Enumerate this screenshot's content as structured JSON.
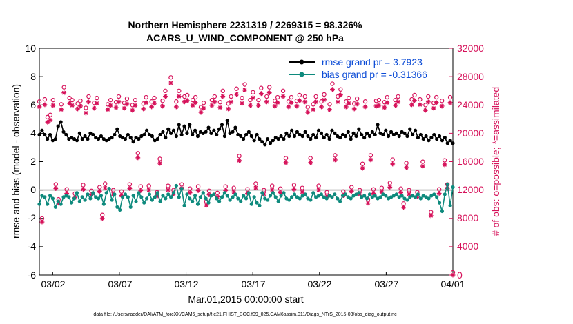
{
  "chart_data": {
    "type": "line",
    "title": [
      "Northern Hemisphere 2231319 / 2269315 = 98.326%",
      "ACARS_U_WIND_COMPONENT @ 250 hPa"
    ],
    "xlabel": "Mar.01,2015 00:00:00 start",
    "ylabel_left": "rmse and bias (model - observation)",
    "ylabel_right": "# of obs: o=possible; *=assimilated",
    "ylim_left": [
      -6,
      10
    ],
    "ylim_right": [
      0,
      32000
    ],
    "yticks_left": [
      "10",
      "8",
      "6",
      "4",
      "2",
      "0",
      "-2",
      "-4",
      "-6"
    ],
    "yticks_right": [
      "32000",
      "28000",
      "24000",
      "20000",
      "16000",
      "12000",
      "8000",
      "4000",
      "0"
    ],
    "xticks": [
      "03/02",
      "03/07",
      "03/12",
      "03/17",
      "03/22",
      "03/27",
      "04/01"
    ],
    "xlim_days": [
      0,
      31
    ],
    "footer": "data file: /Users/raeder/DAI/ATM_forcXX/CAM6_setup/f.e21.FHIST_BGC.f09_025.CAM6assim.011/Diags_NTrS_2015-03/obs_diag_output.nc",
    "colors": {
      "rmse": "#000000",
      "bias": "#0e8a7d",
      "obs": "#d6125a",
      "legend_text": "#0b4bd6",
      "zero_line": "#bdbdbd"
    },
    "series": [
      {
        "name": "rmse grand pr = 3.7923",
        "values": [
          3.9,
          4.2,
          3.9,
          3.6,
          3.9,
          3.5,
          3.6,
          4.5,
          4.8,
          4.1,
          3.9,
          3.6,
          3.7,
          3.6,
          3.5,
          4.0,
          3.6,
          3.8,
          3.6,
          4.0,
          3.9,
          3.7,
          3.6,
          3.8,
          3.6,
          3.5,
          3.6,
          3.7,
          3.9,
          4.3,
          3.8,
          3.7,
          3.6,
          3.9,
          3.7,
          3.4,
          3.7,
          3.6,
          3.8,
          3.9,
          4.2,
          3.9,
          3.8,
          3.5,
          3.6,
          3.9,
          4.1,
          3.7,
          4.3,
          4.0,
          4.2,
          3.8,
          4.6,
          3.9,
          4.5,
          4.0,
          4.6,
          3.9,
          4.2,
          3.8,
          4.1,
          4.0,
          4.1,
          4.4,
          4.0,
          4.2,
          3.9,
          4.3,
          4.6,
          3.8,
          4.9,
          4.0,
          4.1,
          4.4,
          3.9,
          3.8,
          3.6,
          3.9,
          4.1,
          3.8,
          3.5,
          3.9,
          3.6,
          3.4,
          3.2,
          3.6,
          3.3,
          3.5,
          3.7,
          3.6,
          3.8,
          3.6,
          4.0,
          3.8,
          4.2,
          3.8,
          4.1,
          3.9,
          3.8,
          4.1,
          3.8,
          3.6,
          3.9,
          3.7,
          4.2,
          4.0,
          3.7,
          3.9,
          3.6,
          4.2,
          4.0,
          3.8,
          3.7,
          3.9,
          3.8,
          4.1,
          3.6,
          4.0,
          3.8,
          4.3,
          3.9,
          3.7,
          4.0,
          3.8,
          4.1,
          3.9,
          4.6,
          4.0,
          3.9,
          4.2,
          3.8,
          4.1,
          3.9,
          4.0,
          3.8,
          4.1,
          4.0,
          3.8,
          4.3,
          3.9,
          4.2,
          3.7,
          3.9,
          3.6,
          3.8,
          3.5,
          3.7,
          3.9,
          3.6,
          3.8,
          3.5,
          3.7,
          3.3,
          3.5,
          3.3
        ]
      },
      {
        "name": "bias grand pr = -0.31366",
        "values": [
          -1.0,
          -0.4,
          -0.5,
          -1.0,
          -0.4,
          -0.6,
          -1.2,
          -0.8,
          -1.0,
          -0.5,
          -0.4,
          -0.5,
          -0.9,
          -0.6,
          -0.2,
          -0.8,
          -0.5,
          -0.7,
          -0.3,
          -0.6,
          -0.2,
          -0.5,
          -0.6,
          -0.4,
          -1.0,
          -0.2,
          0.1,
          -0.7,
          -0.3,
          -1.2,
          -1.4,
          -0.5,
          -0.3,
          -0.5,
          -1.2,
          -0.4,
          -0.8,
          -0.2,
          -0.5,
          -0.9,
          -0.6,
          -0.3,
          -0.7,
          -0.5,
          -0.2,
          -0.8,
          -0.4,
          -0.6,
          -0.3,
          -0.5,
          -0.2,
          0.3,
          -0.5,
          0.1,
          -1.1,
          -0.3,
          -0.6,
          -0.8,
          -0.4,
          -1.0,
          -0.5,
          -0.2,
          -0.6,
          -0.9,
          -0.4,
          -0.3,
          -0.6,
          -0.8,
          -0.5,
          -0.2,
          -0.4,
          -0.7,
          -0.5,
          -0.3,
          -0.6,
          -0.8,
          -0.4,
          -0.6,
          -0.2,
          -1.0,
          -0.5,
          -0.9,
          -1.1,
          -0.2,
          -0.6,
          -0.7,
          -0.4,
          -0.2,
          -0.5,
          -0.8,
          -0.4,
          -0.2,
          -0.6,
          -0.7,
          -0.5,
          -0.3,
          -0.5,
          -0.6,
          -0.4,
          -0.3,
          -0.6,
          -0.7,
          -0.2,
          -0.5,
          -0.4,
          -0.3,
          -0.5,
          -0.6,
          -0.4,
          -0.5,
          -0.3,
          -0.6,
          -0.8,
          -0.4,
          -0.3,
          -0.5,
          -0.6,
          -0.4,
          -0.3,
          -0.2,
          -0.5,
          -0.4,
          -0.6,
          -0.3,
          -0.5,
          -0.4,
          -0.6,
          -0.5,
          -0.3,
          -0.4,
          -0.6,
          -0.5,
          -0.4,
          -0.3,
          -0.5,
          -0.4,
          -0.6,
          -0.7,
          -0.5,
          -0.4,
          -0.5,
          -0.3,
          -0.6,
          -0.4,
          -0.5,
          -0.6,
          -0.4,
          -0.3,
          -0.5,
          -0.9,
          -1.5,
          -0.3,
          0.4,
          -1.1,
          0.2
        ]
      },
      {
        "name": "obs possible (o)",
        "values": [
          24100,
          7600,
          24400,
          21900,
          22200,
          24300,
          12400,
          10300,
          23700,
          26100,
          11700,
          24600,
          24300,
          11100,
          23800,
          24200,
          12300,
          23200,
          24800,
          11500,
          23900,
          24600,
          12000,
          8100,
          12500,
          23700,
          24300,
          11600,
          24000,
          24800,
          11400,
          23900,
          24500,
          12400,
          23600,
          24300,
          16800,
          12100,
          23800,
          24700,
          12200,
          24100,
          24600,
          11300,
          16000,
          24200,
          25600,
          12200,
          27500,
          11600,
          24100,
          25600,
          12400,
          24800,
          25000,
          11800,
          24300,
          24700,
          12100,
          23300,
          23900,
          10000,
          11500,
          24300,
          24800,
          11200,
          24000,
          25600,
          12100,
          23800,
          24800,
          11900,
          25900,
          16400,
          24600,
          26500,
          11700,
          24300,
          25400,
          12500,
          24300,
          26000,
          11600,
          24800,
          26100,
          12200,
          24200,
          24700,
          11800,
          25600,
          16100,
          24100,
          24700,
          12300,
          24200,
          25000,
          11900,
          24800,
          23300,
          16100,
          23700,
          24800,
          12200,
          24100,
          25100,
          11300,
          23700,
          26600,
          16500,
          24800,
          25800,
          11400,
          24100,
          24600,
          12000,
          23800,
          24500,
          11600,
          15300,
          24100,
          10300,
          16500,
          11700,
          24200,
          24300,
          11900,
          24000,
          24700,
          12600,
          15900,
          24300,
          24800,
          11800,
          9700,
          15400,
          11600,
          24400,
          25000,
          11300,
          24400,
          15600,
          23600,
          24800,
          8500,
          23900,
          24700,
          11700,
          24200,
          15800,
          12400,
          24700,
          0
        ]
      }
    ]
  }
}
